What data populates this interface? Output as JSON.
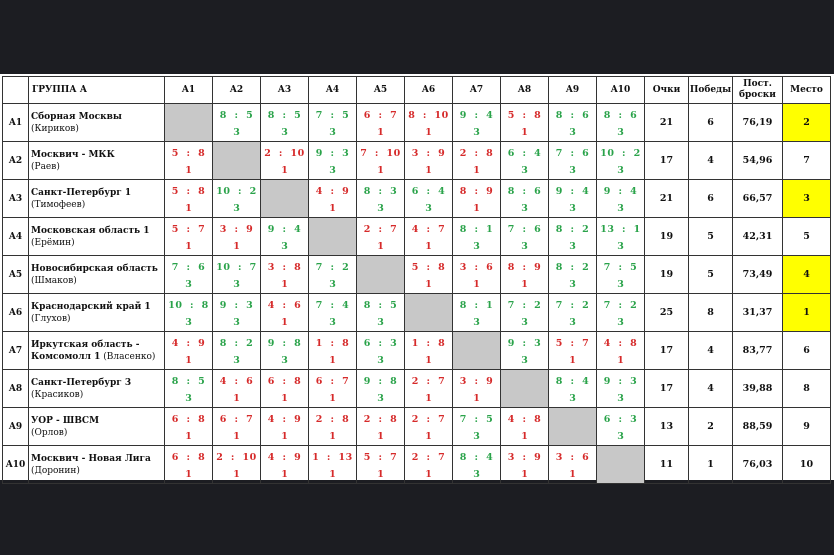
{
  "header": {
    "group": "ГРУППА А",
    "cols": [
      "A1",
      "A2",
      "A3",
      "A4",
      "A5",
      "A6",
      "A7",
      "A8",
      "A9",
      "A10"
    ],
    "points": "Очки",
    "wins": "Победы",
    "shots1": "Пост.",
    "shots2": "броски",
    "place": "Место"
  },
  "highlight_color": "#ffff00",
  "rows": [
    {
      "id": "A1",
      "name": "Сборная Москвы",
      "coach": "(Кириков)",
      "cells": [
        null,
        {
          "s": "8  :  5",
          "p": "3",
          "r": "W"
        },
        {
          "s": "8  :  5",
          "p": "3",
          "r": "W"
        },
        {
          "s": "7  :  5",
          "p": "3",
          "r": "W"
        },
        {
          "s": "6  :  7",
          "p": "1",
          "r": "L"
        },
        {
          "s": "8  :  10",
          "p": "1",
          "r": "L"
        },
        {
          "s": "9  :  4",
          "p": "3",
          "r": "W"
        },
        {
          "s": "5  :  8",
          "p": "1",
          "r": "L"
        },
        {
          "s": "8  :  6",
          "p": "3",
          "r": "W"
        },
        {
          "s": "8  :  6",
          "p": "3",
          "r": "W"
        }
      ],
      "points": "21",
      "wins": "6",
      "shots": "76,19",
      "place": "2",
      "hl": true
    },
    {
      "id": "A2",
      "name": "Москвич - МКК",
      "coach": "(Раев)",
      "cells": [
        {
          "s": "5  :  8",
          "p": "1",
          "r": "L"
        },
        null,
        {
          "s": "2  :  10",
          "p": "1",
          "r": "L"
        },
        {
          "s": "9  :  3",
          "p": "3",
          "r": "W"
        },
        {
          "s": "7  :  10",
          "p": "1",
          "r": "L"
        },
        {
          "s": "3  :  9",
          "p": "1",
          "r": "L"
        },
        {
          "s": "2  :  8",
          "p": "1",
          "r": "L"
        },
        {
          "s": "6  :  4",
          "p": "3",
          "r": "W"
        },
        {
          "s": "7  :  6",
          "p": "3",
          "r": "W"
        },
        {
          "s": "10  :  2",
          "p": "3",
          "r": "W"
        }
      ],
      "points": "17",
      "wins": "4",
      "shots": "54,96",
      "place": "7",
      "hl": false
    },
    {
      "id": "A3",
      "name": "Санкт-Петербург 1",
      "coach": "(Тимофеев)",
      "cells": [
        {
          "s": "5  :  8",
          "p": "1",
          "r": "L"
        },
        {
          "s": "10  :  2",
          "p": "3",
          "r": "W"
        },
        null,
        {
          "s": "4  :  9",
          "p": "1",
          "r": "L"
        },
        {
          "s": "8  :  3",
          "p": "3",
          "r": "W"
        },
        {
          "s": "6  :  4",
          "p": "3",
          "r": "W"
        },
        {
          "s": "8  :  9",
          "p": "1",
          "r": "L"
        },
        {
          "s": "8  :  6",
          "p": "3",
          "r": "W"
        },
        {
          "s": "9  :  4",
          "p": "3",
          "r": "W"
        },
        {
          "s": "9  :  4",
          "p": "3",
          "r": "W"
        }
      ],
      "points": "21",
      "wins": "6",
      "shots": "66,57",
      "place": "3",
      "hl": true
    },
    {
      "id": "A4",
      "name": "Московская область 1",
      "coach": "(Ерёмин)",
      "cells": [
        {
          "s": "5  :  7",
          "p": "1",
          "r": "L"
        },
        {
          "s": "3  :  9",
          "p": "1",
          "r": "L"
        },
        {
          "s": "9  :  4",
          "p": "3",
          "r": "W"
        },
        null,
        {
          "s": "2  :  7",
          "p": "1",
          "r": "L"
        },
        {
          "s": "4  :  7",
          "p": "1",
          "r": "L"
        },
        {
          "s": "8  :  1",
          "p": "3",
          "r": "W"
        },
        {
          "s": "7  :  6",
          "p": "3",
          "r": "W"
        },
        {
          "s": "8  :  2",
          "p": "3",
          "r": "W"
        },
        {
          "s": "13  :  1",
          "p": "3",
          "r": "W"
        }
      ],
      "points": "19",
      "wins": "5",
      "shots": "42,31",
      "place": "5",
      "hl": false
    },
    {
      "id": "A5",
      "name": "Новосибирская область",
      "coach": "(Шмаков)",
      "cells": [
        {
          "s": "7  :  6",
          "p": "3",
          "r": "W"
        },
        {
          "s": "10  :  7",
          "p": "3",
          "r": "W"
        },
        {
          "s": "3  :  8",
          "p": "1",
          "r": "L"
        },
        {
          "s": "7  :  2",
          "p": "3",
          "r": "W"
        },
        null,
        {
          "s": "5  :  8",
          "p": "1",
          "r": "L"
        },
        {
          "s": "3  :  6",
          "p": "1",
          "r": "L"
        },
        {
          "s": "8  :  9",
          "p": "1",
          "r": "L"
        },
        {
          "s": "8  :  2",
          "p": "3",
          "r": "W"
        },
        {
          "s": "7  :  5",
          "p": "3",
          "r": "W"
        }
      ],
      "points": "19",
      "wins": "5",
      "shots": "73,49",
      "place": "4",
      "hl": true
    },
    {
      "id": "A6",
      "name": "Краснодарский край 1",
      "coach": "(Глухов)",
      "cells": [
        {
          "s": "10  :  8",
          "p": "3",
          "r": "W"
        },
        {
          "s": "9  :  3",
          "p": "3",
          "r": "W"
        },
        {
          "s": "4  :  6",
          "p": "1",
          "r": "L"
        },
        {
          "s": "7  :  4",
          "p": "3",
          "r": "W"
        },
        {
          "s": "8  :  5",
          "p": "3",
          "r": "W"
        },
        null,
        {
          "s": "8  :  1",
          "p": "3",
          "r": "W"
        },
        {
          "s": "7  :  2",
          "p": "3",
          "r": "W"
        },
        {
          "s": "7  :  2",
          "p": "3",
          "r": "W"
        },
        {
          "s": "7  :  2",
          "p": "3",
          "r": "W"
        }
      ],
      "points": "25",
      "wins": "8",
      "shots": "31,37",
      "place": "1",
      "hl": true
    },
    {
      "id": "A7",
      "name": "Иркутская область -",
      "name2": "Комсомолл 1",
      "coach": "(Власенко)",
      "cells": [
        {
          "s": "4  :  9",
          "p": "1",
          "r": "L"
        },
        {
          "s": "8  :  2",
          "p": "3",
          "r": "W"
        },
        {
          "s": "9  :  8",
          "p": "3",
          "r": "W"
        },
        {
          "s": "1  :  8",
          "p": "1",
          "r": "L"
        },
        {
          "s": "6  :  3",
          "p": "3",
          "r": "W"
        },
        {
          "s": "1  :  8",
          "p": "1",
          "r": "L"
        },
        null,
        {
          "s": "9  :  3",
          "p": "3",
          "r": "W"
        },
        {
          "s": "5  :  7",
          "p": "1",
          "r": "L"
        },
        {
          "s": "4  :  8",
          "p": "1",
          "r": "L"
        }
      ],
      "points": "17",
      "wins": "4",
      "shots": "83,77",
      "place": "6",
      "hl": false
    },
    {
      "id": "A8",
      "name": "Санкт-Петербург 3",
      "coach": "(Красиков)",
      "cells": [
        {
          "s": "8  :  5",
          "p": "3",
          "r": "W"
        },
        {
          "s": "4  :  6",
          "p": "1",
          "r": "L"
        },
        {
          "s": "6  :  8",
          "p": "1",
          "r": "L"
        },
        {
          "s": "6  :  7",
          "p": "1",
          "r": "L"
        },
        {
          "s": "9  :  8",
          "p": "3",
          "r": "W"
        },
        {
          "s": "2  :  7",
          "p": "1",
          "r": "L"
        },
        {
          "s": "3  :  9",
          "p": "1",
          "r": "L"
        },
        null,
        {
          "s": "8  :  4",
          "p": "3",
          "r": "W"
        },
        {
          "s": "9  :  3",
          "p": "3",
          "r": "W"
        }
      ],
      "points": "17",
      "wins": "4",
      "shots": "39,88",
      "place": "8",
      "hl": false
    },
    {
      "id": "A9",
      "name": "УОР - ШВСМ",
      "coach": "(Орлов)",
      "cells": [
        {
          "s": "6  :  8",
          "p": "1",
          "r": "L"
        },
        {
          "s": "6  :  7",
          "p": "1",
          "r": "L"
        },
        {
          "s": "4  :  9",
          "p": "1",
          "r": "L"
        },
        {
          "s": "2  :  8",
          "p": "1",
          "r": "L"
        },
        {
          "s": "2  :  8",
          "p": "1",
          "r": "L"
        },
        {
          "s": "2  :  7",
          "p": "1",
          "r": "L"
        },
        {
          "s": "7  :  5",
          "p": "3",
          "r": "W"
        },
        {
          "s": "4  :  8",
          "p": "1",
          "r": "L"
        },
        null,
        {
          "s": "6  :  3",
          "p": "3",
          "r": "W"
        }
      ],
      "points": "13",
      "wins": "2",
      "shots": "88,59",
      "place": "9",
      "hl": false
    },
    {
      "id": "A10",
      "name": "Москвич - Новая Лига",
      "coach": "(Доронин)",
      "cells": [
        {
          "s": "6  :  8",
          "p": "1",
          "r": "L"
        },
        {
          "s": "2  :  10",
          "p": "1",
          "r": "L"
        },
        {
          "s": "4  :  9",
          "p": "1",
          "r": "L"
        },
        {
          "s": "1  :  13",
          "p": "1",
          "r": "L"
        },
        {
          "s": "5  :  7",
          "p": "1",
          "r": "L"
        },
        {
          "s": "2  :  7",
          "p": "1",
          "r": "L"
        },
        {
          "s": "8  :  4",
          "p": "3",
          "r": "W"
        },
        {
          "s": "3  :  9",
          "p": "1",
          "r": "L"
        },
        {
          "s": "3  :  6",
          "p": "1",
          "r": "L"
        },
        null
      ],
      "points": "11",
      "wins": "1",
      "shots": "76,03",
      "place": "10",
      "hl": false
    }
  ]
}
